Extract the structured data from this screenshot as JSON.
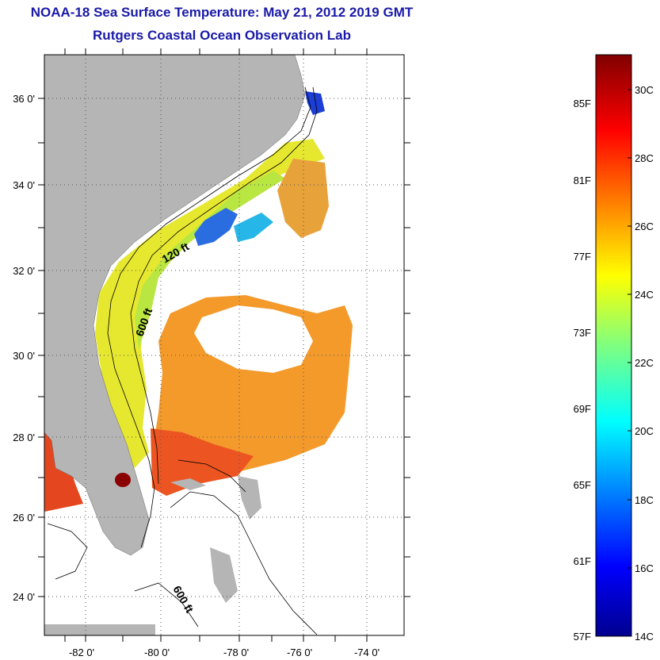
{
  "title": "NOAA-18 Sea Surface Temperature:  May 21, 2012 2019 GMT",
  "subtitle": "Rutgers Coastal Ocean Observation Lab",
  "map": {
    "lat_ticks": [
      "36 0'",
      "34 0'",
      "32 0'",
      "30 0'",
      "28 0'",
      "26 0'",
      "24 0'"
    ],
    "lon_ticks": [
      "-82 0'",
      "-80 0'",
      "-78 0'",
      "-76 0'",
      "-74 0'"
    ],
    "contour_labels": [
      "120 ft",
      "600 ft",
      "600 ft"
    ],
    "colors": {
      "land": "#b5b5b5",
      "frame": "#000000",
      "title": "#1a1aa8"
    }
  },
  "colorbar": {
    "fahrenheit_labels": [
      "85F",
      "81F",
      "77F",
      "73F",
      "69F",
      "65F",
      "61F",
      "57F"
    ],
    "celsius_labels": [
      "30C",
      "28C",
      "26C",
      "24C",
      "22C",
      "20C",
      "18C",
      "16C",
      "14C"
    ],
    "range_c": [
      14,
      31
    ],
    "colormap": "jet"
  }
}
